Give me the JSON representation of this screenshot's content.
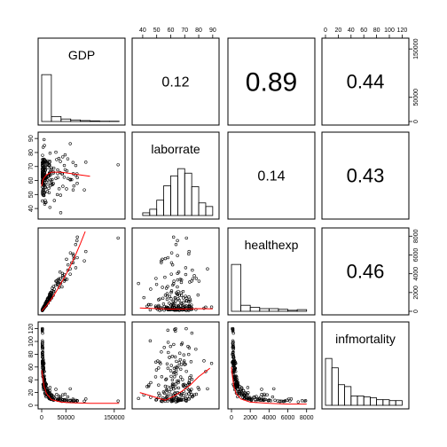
{
  "chart_data": {
    "type": "scatter",
    "layout": "scatterplot-matrix",
    "variables": [
      "GDP",
      "laborrate",
      "healthexp",
      "infmortality"
    ],
    "fit_line_color": "#ff0000",
    "axes": [
      {
        "variable": "GDP",
        "range": [
          0,
          165000
        ],
        "ticks": [
          0,
          50000,
          150000
        ],
        "tick_labels": [
          "0",
          "50000",
          "150000"
        ]
      },
      {
        "variable": "laborrate",
        "range": [
          35,
          92
        ],
        "ticks": [
          40,
          50,
          60,
          70,
          80,
          90
        ],
        "tick_labels": [
          "40",
          "50",
          "60",
          "70",
          "80",
          "90"
        ]
      },
      {
        "variable": "healthexp",
        "range": [
          0,
          8500
        ],
        "ticks": [
          0,
          2000,
          4000,
          6000,
          8000
        ],
        "tick_labels": [
          "0",
          "2000",
          "4000",
          "6000",
          "8000"
        ]
      },
      {
        "variable": "infmortality",
        "range": [
          0,
          125
        ],
        "ticks": [
          0,
          20,
          40,
          60,
          80,
          100,
          120
        ],
        "tick_labels": [
          "0",
          "20",
          "40",
          "60",
          "80",
          "100",
          "120"
        ]
      }
    ],
    "correlations": [
      {
        "row": 0,
        "col": 1,
        "value": "0.12"
      },
      {
        "row": 0,
        "col": 2,
        "value": "0.89"
      },
      {
        "row": 0,
        "col": 3,
        "value": "0.44"
      },
      {
        "row": 1,
        "col": 2,
        "value": "0.14"
      },
      {
        "row": 1,
        "col": 3,
        "value": "0.43"
      },
      {
        "row": 2,
        "col": 3,
        "value": "0.46"
      }
    ],
    "histograms": [
      {
        "variable": "GDP",
        "bins": [
          0,
          20000,
          40000,
          60000,
          80000,
          100000,
          120000,
          140000,
          160000
        ],
        "counts": [
          150,
          16,
          8,
          5,
          3,
          2,
          1,
          1
        ]
      },
      {
        "variable": "laborrate",
        "bins": [
          40,
          45,
          50,
          55,
          60,
          65,
          70,
          75,
          80,
          85,
          90
        ],
        "counts": [
          3,
          7,
          17,
          33,
          44,
          52,
          47,
          32,
          14,
          10
        ]
      },
      {
        "variable": "healthexp",
        "bins": [
          0,
          1000,
          2000,
          3000,
          4000,
          5000,
          6000,
          7000,
          8000
        ],
        "counts": [
          140,
          18,
          12,
          8,
          8,
          6,
          3,
          5
        ]
      },
      {
        "variable": "infmortality",
        "bins": [
          0,
          10,
          20,
          30,
          40,
          50,
          60,
          70,
          80,
          90,
          100,
          110,
          120
        ],
        "counts": [
          50,
          40,
          22,
          20,
          10,
          10,
          9,
          8,
          6,
          6,
          5,
          5
        ]
      }
    ],
    "smoothers": {
      "laborrate_vs_GDP": [
        [
          0,
          56
        ],
        [
          2000,
          60
        ],
        [
          5000,
          62
        ],
        [
          10000,
          64
        ],
        [
          20000,
          66
        ],
        [
          40000,
          66
        ],
        [
          60000,
          65
        ],
        [
          80000,
          64
        ],
        [
          100000,
          63
        ]
      ],
      "healthexp_vs_GDP": [
        [
          0,
          30
        ],
        [
          10000,
          600
        ],
        [
          20000,
          1300
        ],
        [
          30000,
          2100
        ],
        [
          40000,
          3000
        ],
        [
          50000,
          3900
        ],
        [
          60000,
          4900
        ],
        [
          70000,
          6000
        ],
        [
          80000,
          7200
        ],
        [
          90000,
          8500
        ]
      ],
      "infmortality_vs_GDP": [
        [
          0,
          55
        ],
        [
          2000,
          45
        ],
        [
          5000,
          30
        ],
        [
          10000,
          18
        ],
        [
          20000,
          9
        ],
        [
          40000,
          5
        ],
        [
          60000,
          4
        ],
        [
          100000,
          3
        ],
        [
          160000,
          3
        ]
      ],
      "healthexp_vs_laborrate": [
        [
          38,
          350
        ],
        [
          50,
          280
        ],
        [
          60,
          240
        ],
        [
          70,
          240
        ],
        [
          80,
          280
        ],
        [
          90,
          260
        ]
      ],
      "infmortality_vs_laborrate": [
        [
          38,
          20
        ],
        [
          50,
          12
        ],
        [
          56,
          8
        ],
        [
          62,
          14
        ],
        [
          68,
          22
        ],
        [
          74,
          32
        ],
        [
          80,
          45
        ],
        [
          88,
          58
        ]
      ],
      "infmortality_vs_healthexp": [
        [
          0,
          60
        ],
        [
          100,
          45
        ],
        [
          250,
          30
        ],
        [
          500,
          18
        ],
        [
          1000,
          10
        ],
        [
          2000,
          5
        ],
        [
          4000,
          3
        ],
        [
          6000,
          2
        ],
        [
          8000,
          2
        ]
      ]
    }
  }
}
